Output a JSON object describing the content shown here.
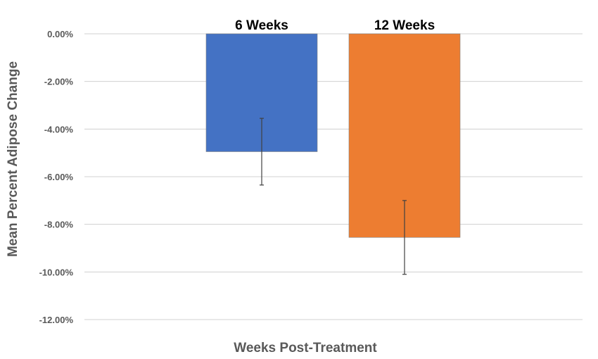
{
  "chart_data": {
    "type": "bar",
    "categories": [
      "6 Weeks",
      "12 Weeks"
    ],
    "values": [
      -4.95,
      -8.55
    ],
    "error": [
      1.4,
      1.55
    ],
    "colors": [
      "#4472c4",
      "#ed7d31"
    ],
    "xlabel": "Weeks Post-Treatment",
    "ylabel": "Mean Percent Adipose Change",
    "ylim": [
      -12,
      0
    ],
    "yticks": [
      "0.00%",
      "-2.00%",
      "-4.00%",
      "-6.00%",
      "-8.00%",
      "-10.00%",
      "-12.00%"
    ],
    "grid": true,
    "legend": "none"
  }
}
